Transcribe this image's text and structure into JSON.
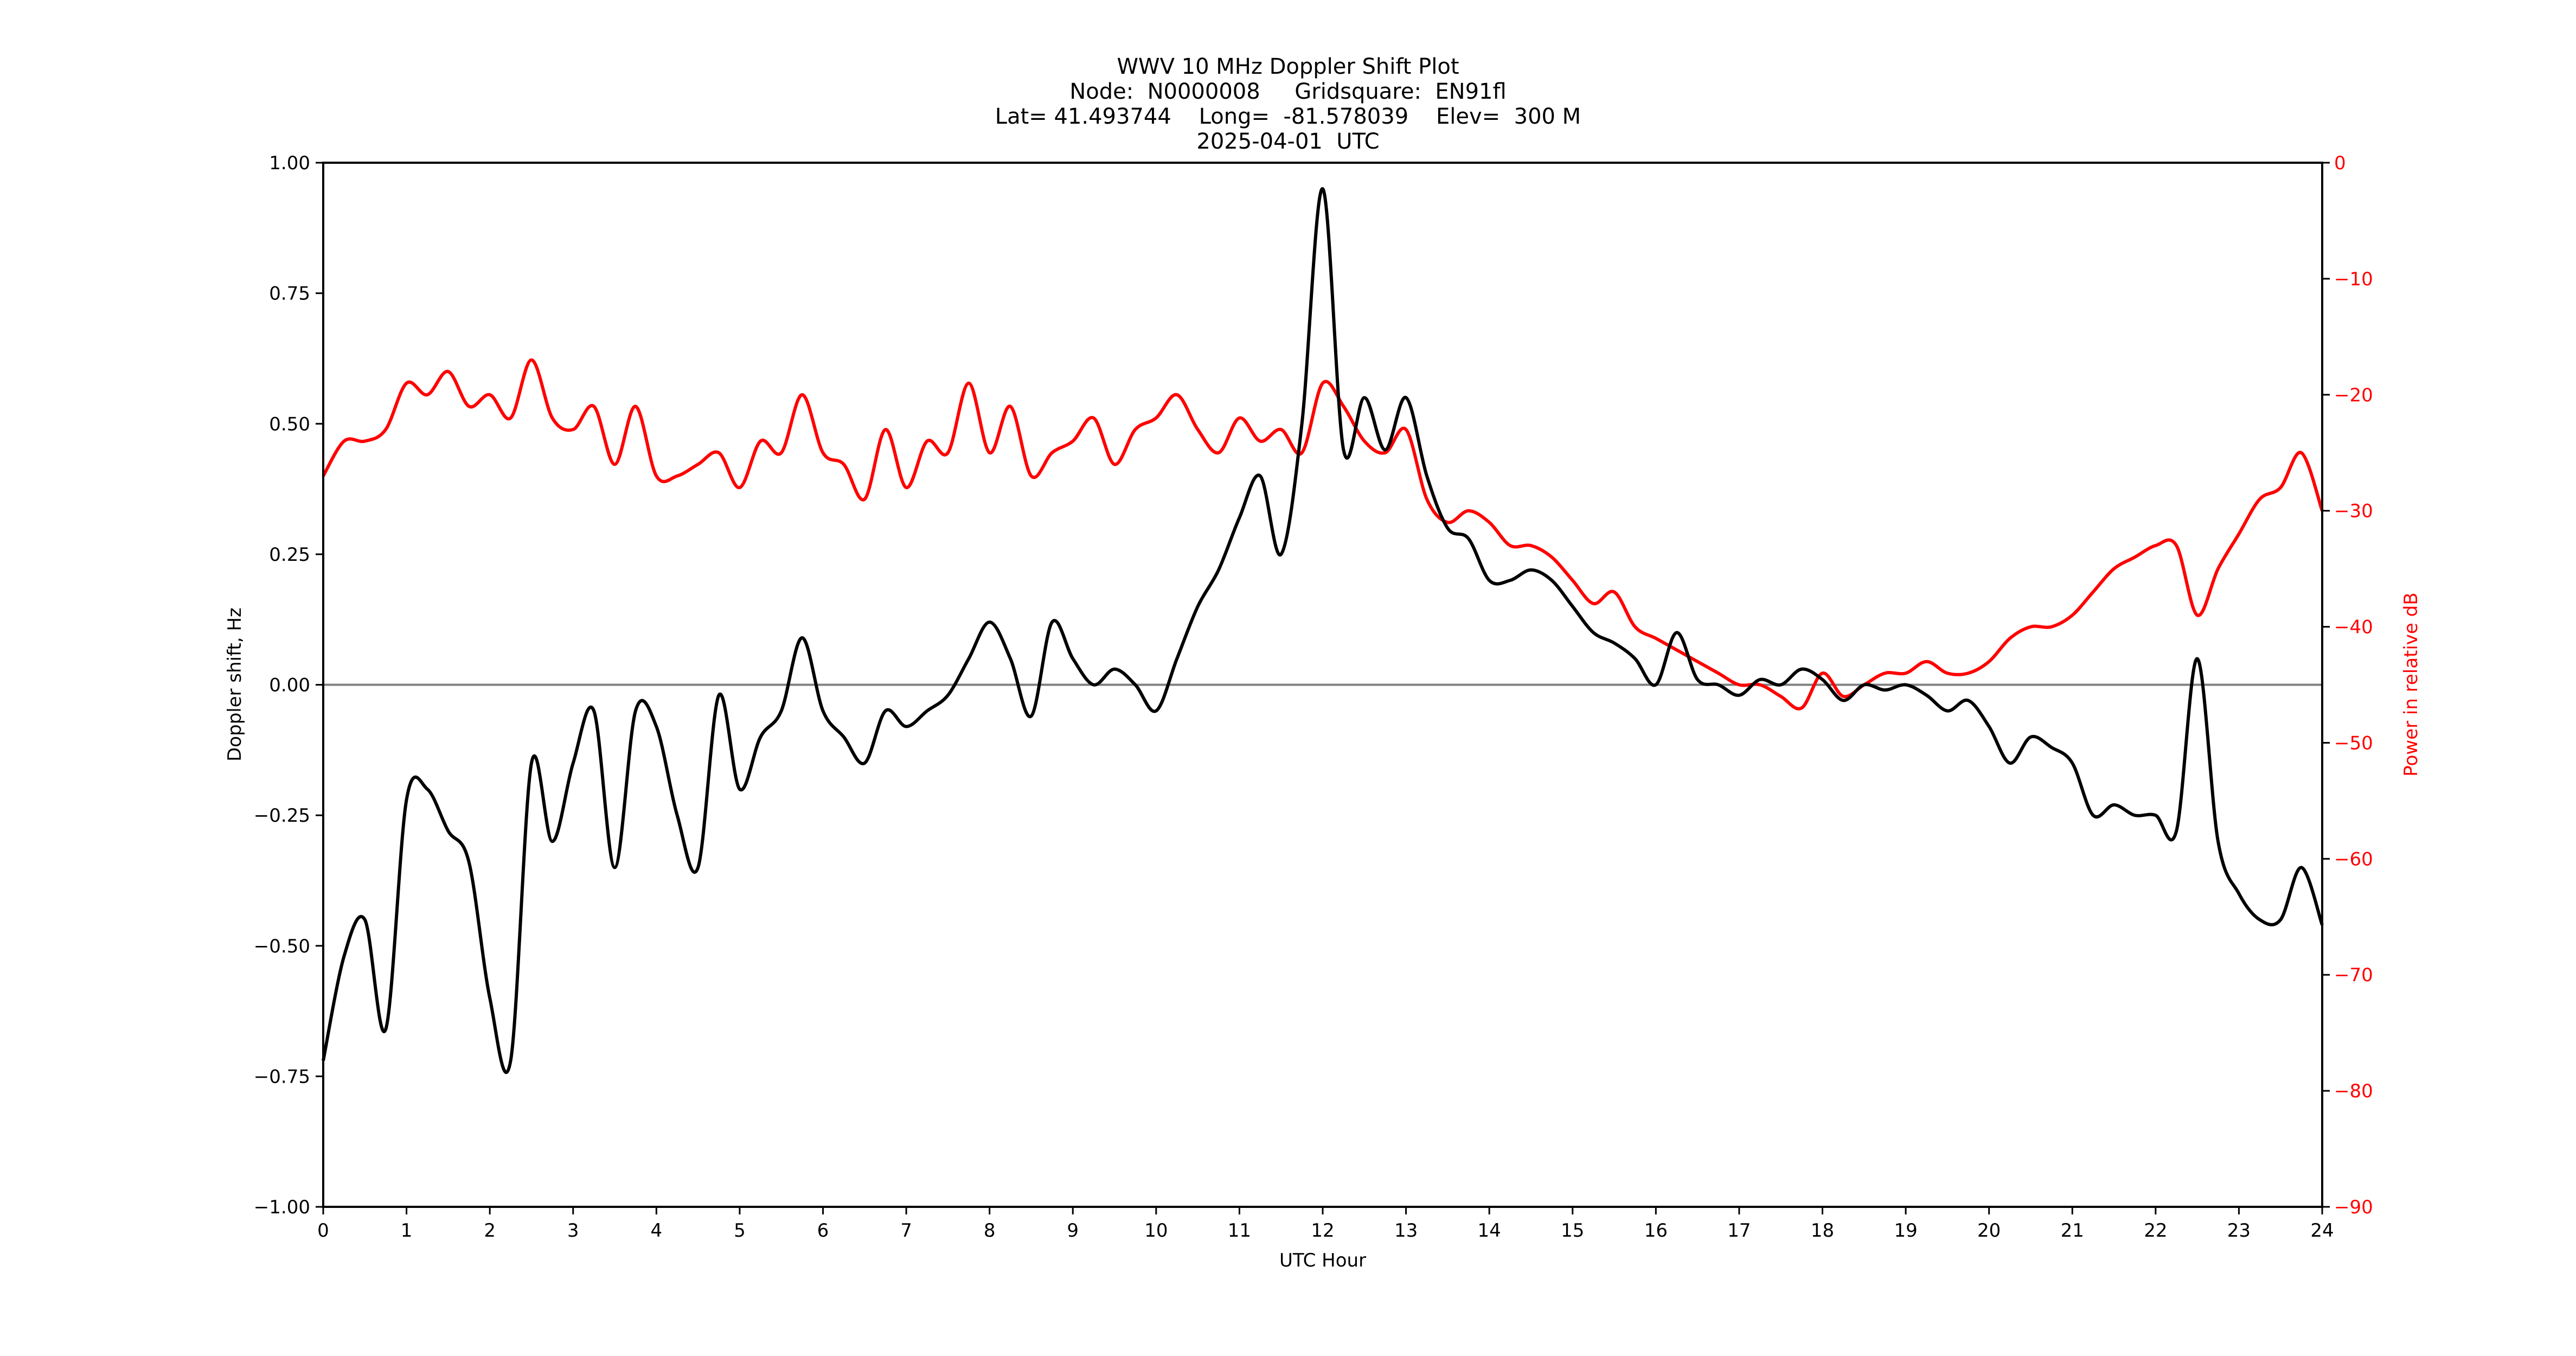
{
  "figure": {
    "title": "WWV 10 MHz Doppler Shift Plot",
    "subtitle_node": "Node:  N0000008     Gridsquare:  EN91fl",
    "subtitle_location": "Lat= 41.493744    Long=  -81.578039    Elev=  300 M",
    "subtitle_date": "2025-04-01  UTC"
  },
  "colors": {
    "doppler": "#000000",
    "power": "#ff0000",
    "zero_line": "#808080",
    "axes": "#000000"
  },
  "chart_data": {
    "type": "line",
    "title": "WWV 10 MHz Doppler Shift Plot",
    "subtitle": [
      "Node:  N0000008     Gridsquare:  EN91fl",
      "Lat= 41.493744    Long=  -81.578039    Elev=  300 M",
      "2025-04-01  UTC"
    ],
    "xlabel": "UTC Hour",
    "ylabel": "Doppler shift, Hz",
    "y2label": "Power in relative dB",
    "xlim": [
      0,
      24
    ],
    "ylim": [
      -1.0,
      1.0
    ],
    "y2lim": [
      -90,
      0
    ],
    "xticks": [
      "0",
      "1",
      "2",
      "3",
      "4",
      "5",
      "6",
      "7",
      "8",
      "9",
      "10",
      "11",
      "12",
      "13",
      "14",
      "15",
      "16",
      "17",
      "18",
      "19",
      "20",
      "21",
      "22",
      "23",
      "24"
    ],
    "yticks": [
      "1.00",
      "0.75",
      "0.50",
      "0.25",
      "0.00",
      "−0.25",
      "−0.50",
      "−0.75",
      "−1.00"
    ],
    "y2ticks": [
      "0",
      "−10",
      "−20",
      "−30",
      "−40",
      "−50",
      "−60",
      "−70",
      "−80",
      "−90"
    ],
    "grid": false,
    "hline": 0.0,
    "x": [
      0,
      0.25,
      0.5,
      0.75,
      1,
      1.25,
      1.5,
      1.75,
      2,
      2.25,
      2.5,
      2.75,
      3,
      3.25,
      3.5,
      3.75,
      4,
      4.25,
      4.5,
      4.75,
      5,
      5.25,
      5.5,
      5.75,
      6,
      6.25,
      6.5,
      6.75,
      7,
      7.25,
      7.5,
      7.75,
      8,
      8.25,
      8.5,
      8.75,
      9,
      9.25,
      9.5,
      9.75,
      10,
      10.25,
      10.5,
      10.75,
      11,
      11.25,
      11.5,
      11.75,
      12,
      12.25,
      12.5,
      12.75,
      13,
      13.25,
      13.5,
      13.75,
      14,
      14.25,
      14.5,
      14.75,
      15,
      15.25,
      15.5,
      15.75,
      16,
      16.25,
      16.5,
      16.75,
      17,
      17.25,
      17.5,
      17.75,
      18,
      18.25,
      18.5,
      18.75,
      19,
      19.25,
      19.5,
      19.75,
      20,
      20.25,
      20.5,
      20.75,
      21,
      21.25,
      21.5,
      21.75,
      22,
      22.25,
      22.5,
      22.75,
      23,
      23.25,
      23.5,
      23.75,
      24
    ],
    "series": [
      {
        "name": "Doppler shift (Hz)",
        "axis": "left",
        "color": "#000000",
        "values": [
          -0.72,
          -0.52,
          -0.45,
          -0.66,
          -0.22,
          -0.2,
          -0.28,
          -0.34,
          -0.6,
          -0.72,
          -0.15,
          -0.3,
          -0.15,
          -0.05,
          -0.35,
          -0.05,
          -0.08,
          -0.25,
          -0.35,
          -0.02,
          -0.2,
          -0.1,
          -0.05,
          0.09,
          -0.05,
          -0.1,
          -0.15,
          -0.05,
          -0.08,
          -0.05,
          -0.02,
          0.05,
          0.12,
          0.05,
          -0.06,
          0.12,
          0.05,
          0.0,
          0.03,
          0.0,
          -0.05,
          0.05,
          0.15,
          0.22,
          0.32,
          0.4,
          0.25,
          0.5,
          0.95,
          0.45,
          0.55,
          0.45,
          0.55,
          0.4,
          0.3,
          0.28,
          0.2,
          0.2,
          0.22,
          0.2,
          0.15,
          0.1,
          0.08,
          0.05,
          0.0,
          0.1,
          0.01,
          0.0,
          -0.02,
          0.01,
          0.0,
          0.03,
          0.01,
          -0.03,
          0.0,
          -0.01,
          0.0,
          -0.02,
          -0.05,
          -0.03,
          -0.08,
          -0.15,
          -0.1,
          -0.12,
          -0.15,
          -0.25,
          -0.23,
          -0.25,
          -0.25,
          -0.28,
          0.05,
          -0.3,
          -0.4,
          -0.45,
          -0.45,
          -0.35,
          -0.46
        ]
      },
      {
        "name": "Power (relative dB)",
        "axis": "right",
        "color": "#ff0000",
        "values": [
          -27,
          -24,
          -24,
          -23,
          -19,
          -20,
          -18,
          -21,
          -20,
          -22,
          -17,
          -22,
          -23,
          -21,
          -26,
          -21,
          -27,
          -27,
          -26,
          -25,
          -28,
          -24,
          -25,
          -20,
          -25,
          -26,
          -29,
          -23,
          -28,
          -24,
          -25,
          -19,
          -25,
          -21,
          -27,
          -25,
          -24,
          -22,
          -26,
          -23,
          -22,
          -20,
          -23,
          -25,
          -22,
          -24,
          -23,
          -25,
          -19,
          -21,
          -24,
          -25,
          -23,
          -29,
          -31,
          -30,
          -31,
          -33,
          -33,
          -34,
          -36,
          -38,
          -37,
          -40,
          -41,
          -42,
          -43,
          -44,
          -45,
          -45,
          -46,
          -47,
          -44,
          -46,
          -45,
          -44,
          -44,
          -43,
          -44,
          -44,
          -43,
          -41,
          -40,
          -40,
          -39,
          -37,
          -35,
          -34,
          -33,
          -33,
          -39,
          -35,
          -32,
          -29,
          -28,
          -25,
          -30
        ]
      }
    ]
  }
}
